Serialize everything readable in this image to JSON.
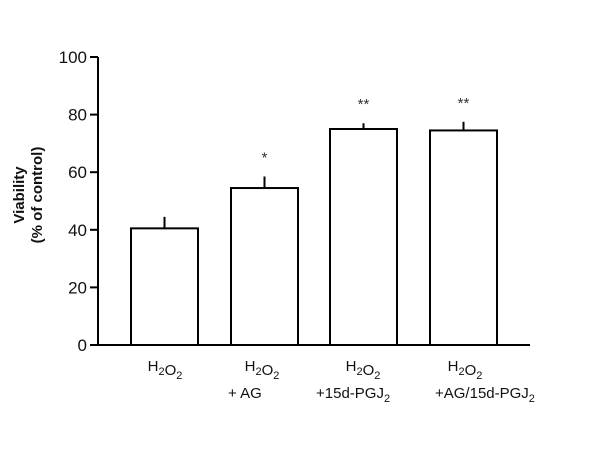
{
  "chart_data": {
    "type": "bar",
    "title": "",
    "xlabel": "",
    "ylabel": "Viability (% of control)",
    "ylabel_lines": [
      "Viability",
      "(% of control)"
    ],
    "ylim": [
      0,
      100
    ],
    "yticks": [
      0,
      20,
      40,
      60,
      80,
      100
    ],
    "grid": false,
    "legend": null,
    "categories": [
      "H2O2",
      "H2O2 + AG",
      "H2O2 +15d-PGJ2",
      "H2O2 +AG/15d-PGJ2"
    ],
    "category_labels": [
      {
        "line1": "H2O2",
        "line2": ""
      },
      {
        "line1": "H2O2",
        "line2": "+ AG"
      },
      {
        "line1": "H2O2",
        "line2": "+15d-PGJ2"
      },
      {
        "line1": "H2O2",
        "line2": "+AG/15d-PGJ2"
      }
    ],
    "values": [
      40.5,
      54.5,
      75,
      74.5
    ],
    "error_upper": [
      4,
      4,
      2,
      3
    ],
    "annotations": [
      "",
      "*",
      "**",
      "**"
    ],
    "bar_fill": "#ffffff",
    "bar_edge": "#000000"
  }
}
